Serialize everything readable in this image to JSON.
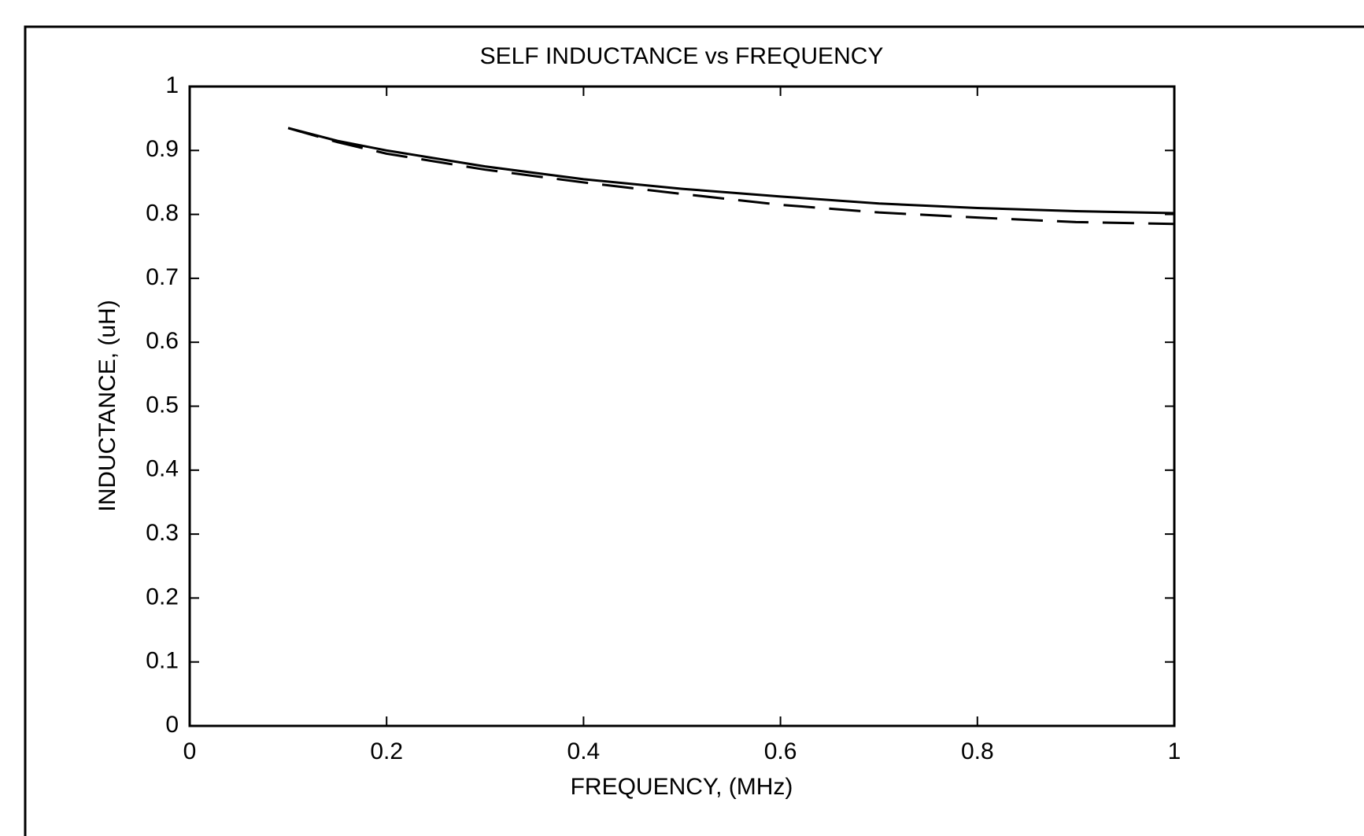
{
  "chart_data": {
    "type": "line",
    "title": "SELF INDUCTANCE vs FREQUENCY",
    "x_label": "FREQUENCY, (MHz)",
    "y_label": "INDUCTANCE, (uH)",
    "x": [
      0.1,
      0.15,
      0.2,
      0.3,
      0.4,
      0.5,
      0.6,
      0.7,
      0.8,
      0.9,
      1.0
    ],
    "series": [
      {
        "color": "#000000",
        "dash": "solid",
        "values": [
          0.935,
          0.915,
          0.9,
          0.875,
          0.855,
          0.84,
          0.828,
          0.817,
          0.81,
          0.805,
          0.802
        ]
      },
      {
        "color": "#000000",
        "dash": "dashed",
        "values": [
          0.935,
          0.913,
          0.895,
          0.87,
          0.85,
          0.832,
          0.815,
          0.803,
          0.795,
          0.788,
          0.785
        ]
      }
    ],
    "xlim": [
      0,
      1
    ],
    "xticks": [
      0,
      0.2,
      0.4,
      0.6,
      0.8,
      1
    ],
    "ylim": [
      0,
      1
    ],
    "yticks": [
      0,
      0.1,
      0.2,
      0.3,
      0.4,
      0.5,
      0.6,
      0.7,
      0.8,
      0.9,
      1
    ],
    "grid": false
  }
}
